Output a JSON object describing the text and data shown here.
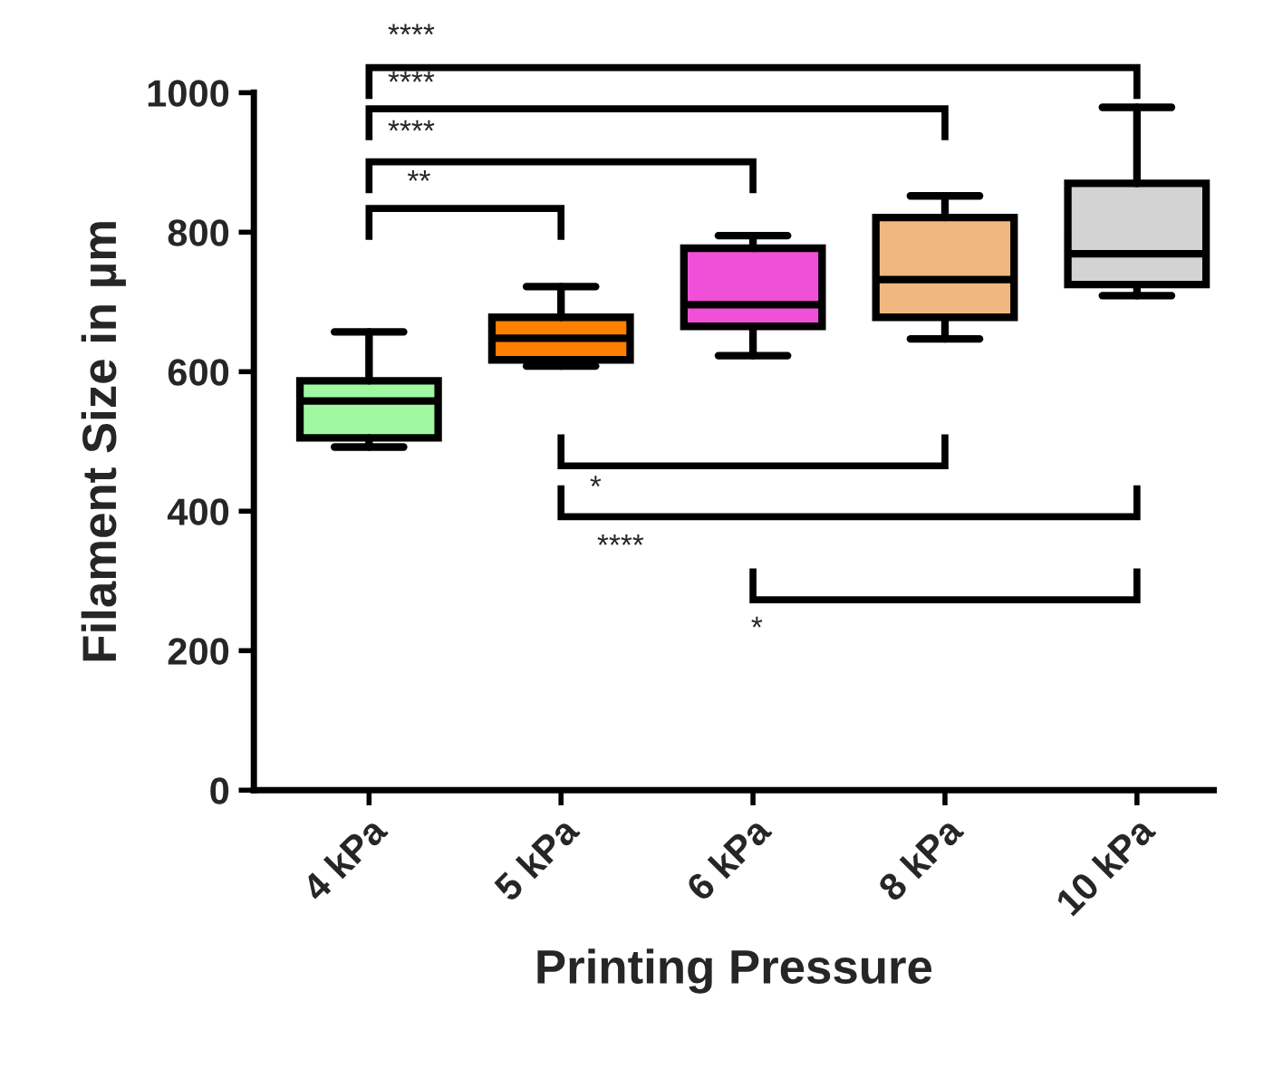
{
  "chart_data": {
    "type": "box",
    "xlabel": "Printing Pressure",
    "ylabel": "Filament Size in µm",
    "categories": [
      "4 kPa",
      "5 kPa",
      "6 kPa",
      "8 kPa",
      "10 kPa"
    ],
    "colors": [
      "#a0f8a0",
      "#ff8000",
      "#f050d8",
      "#f0b880",
      "#d3d3d3"
    ],
    "boxes": [
      {
        "low": 492,
        "q1": 505,
        "median": 558,
        "q3": 587,
        "high": 657
      },
      {
        "low": 608,
        "q1": 617,
        "median": 648,
        "q3": 678,
        "high": 722
      },
      {
        "low": 623,
        "q1": 665,
        "median": 696,
        "q3": 777,
        "high": 795
      },
      {
        "low": 647,
        "q1": 678,
        "median": 732,
        "q3": 821,
        "high": 852
      },
      {
        "low": 709,
        "q1": 725,
        "median": 769,
        "q3": 870,
        "high": 979
      }
    ],
    "ylim": [
      0,
      1000
    ],
    "yticks": [
      0,
      200,
      400,
      600,
      800,
      1000
    ],
    "grid": false,
    "legend": false,
    "annotations": [
      "****",
      "****",
      "****",
      "**",
      "*",
      "****",
      "*"
    ]
  }
}
